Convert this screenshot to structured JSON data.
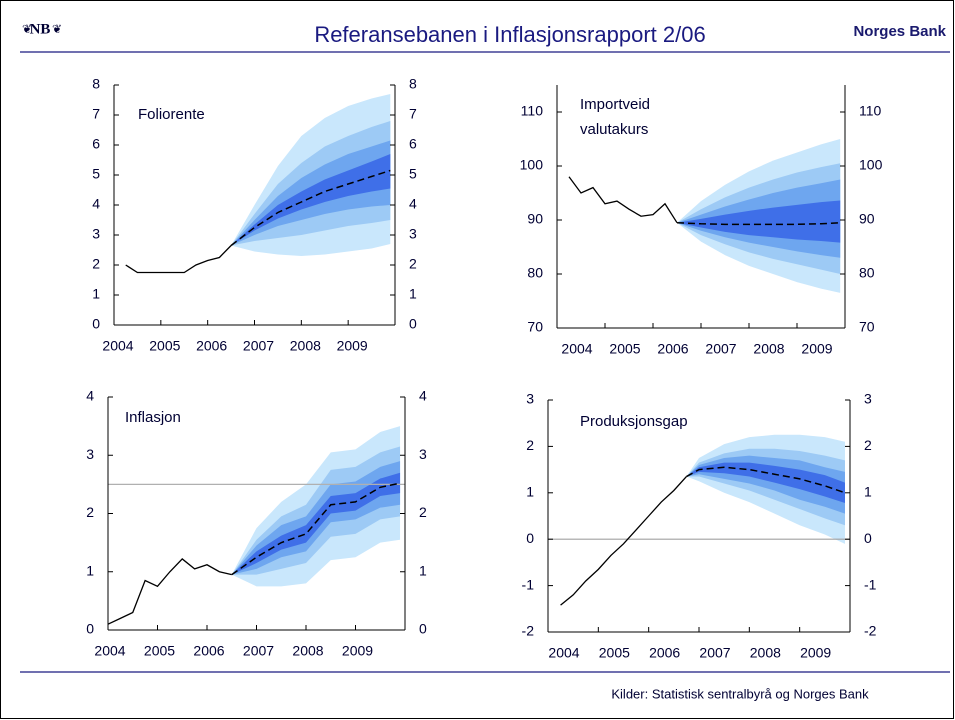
{
  "header": {
    "logo": "NB",
    "title": "Referansebanen i Inflasjonsrapport 2/06",
    "brand": "Norges Bank"
  },
  "footer": {
    "source": "Kilder: Statistisk sentralbyrå og Norges Bank"
  },
  "chart_data": [
    {
      "type": "fan",
      "title": [
        "Foliorente"
      ],
      "xlim": [
        2004,
        2010
      ],
      "xticks": [
        2004,
        2005,
        2006,
        2007,
        2008,
        2009
      ],
      "ylim": [
        0,
        8
      ],
      "yticks": [
        0,
        1,
        2,
        3,
        4,
        5,
        6,
        7,
        8
      ],
      "history": {
        "color": "#000000",
        "x": [
          2004.25,
          2004.5,
          2004.75,
          2005,
          2005.25,
          2005.5,
          2005.75,
          2006,
          2006.25,
          2006.5
        ],
        "values": [
          2.0,
          1.75,
          1.75,
          1.75,
          1.75,
          1.75,
          2.0,
          2.15,
          2.25,
          2.65
        ]
      },
      "fan_x": [
        2006.5,
        2007,
        2007.5,
        2008,
        2008.5,
        2009,
        2009.5,
        2009.9
      ],
      "median": {
        "color": "#000000",
        "values": [
          2.65,
          3.25,
          3.75,
          4.1,
          4.45,
          4.7,
          4.95,
          5.15
        ]
      },
      "bands": [
        {
          "color": "#c9e7fc",
          "lower": [
            2.65,
            2.45,
            2.35,
            2.3,
            2.35,
            2.45,
            2.55,
            2.7
          ],
          "upper": [
            2.65,
            4.0,
            5.3,
            6.3,
            6.9,
            7.3,
            7.55,
            7.7
          ]
        },
        {
          "color": "#9dcaf5",
          "lower": [
            2.65,
            2.8,
            2.9,
            3.0,
            3.15,
            3.3,
            3.4,
            3.5
          ],
          "upper": [
            2.65,
            3.7,
            4.7,
            5.4,
            5.95,
            6.3,
            6.6,
            6.8
          ]
        },
        {
          "color": "#6ea6ef",
          "lower": [
            2.65,
            3.0,
            3.3,
            3.5,
            3.7,
            3.85,
            3.95,
            4.0
          ],
          "upper": [
            2.65,
            3.5,
            4.3,
            4.9,
            5.35,
            5.7,
            5.95,
            6.15
          ]
        },
        {
          "color": "#3f6fe8",
          "lower": [
            2.65,
            3.15,
            3.55,
            3.85,
            4.1,
            4.3,
            4.45,
            4.55
          ],
          "upper": [
            2.65,
            3.35,
            4.0,
            4.45,
            4.85,
            5.15,
            5.45,
            5.7
          ]
        }
      ]
    },
    {
      "type": "fan",
      "title": [
        "Importveid",
        "valutakurs"
      ],
      "xlim": [
        2004,
        2010
      ],
      "xticks": [
        2004,
        2005,
        2006,
        2007,
        2008,
        2009
      ],
      "ylim": [
        70,
        115
      ],
      "yticks": [
        70,
        80,
        90,
        100,
        110
      ],
      "history": {
        "color": "#000000",
        "x": [
          2004.25,
          2004.5,
          2004.75,
          2005,
          2005.25,
          2005.5,
          2005.75,
          2006,
          2006.25,
          2006.5
        ],
        "values": [
          98,
          95,
          96,
          93,
          93.5,
          92,
          90.7,
          91,
          93,
          89.5
        ]
      },
      "fan_x": [
        2006.5,
        2007,
        2007.5,
        2008,
        2008.5,
        2009,
        2009.5,
        2009.9
      ],
      "median": {
        "color": "#000000",
        "values": [
          89.5,
          89.3,
          89.2,
          89.2,
          89.2,
          89.2,
          89.3,
          89.5
        ]
      },
      "bands": [
        {
          "color": "#c9e7fc",
          "lower": [
            89.5,
            86,
            83.5,
            81.5,
            80,
            78.5,
            77.3,
            76.5
          ],
          "upper": [
            89.5,
            93.5,
            96.5,
            99,
            101,
            102.5,
            104,
            105
          ]
        },
        {
          "color": "#9dcaf5",
          "lower": [
            89.5,
            87.2,
            85.5,
            84,
            82.8,
            81.8,
            80.8,
            80
          ],
          "upper": [
            89.5,
            92,
            94.2,
            96,
            97.5,
            98.8,
            99.8,
            100.5
          ]
        },
        {
          "color": "#6ea6ef",
          "lower": [
            89.5,
            88,
            86.8,
            85.8,
            85,
            84.2,
            83.5,
            83
          ],
          "upper": [
            89.5,
            91,
            92.5,
            93.8,
            95,
            96,
            96.8,
            97.5
          ]
        },
        {
          "color": "#3f6fe8",
          "lower": [
            89.5,
            88.6,
            87.8,
            87.2,
            86.8,
            86.4,
            86.1,
            85.8
          ],
          "upper": [
            89.5,
            90.2,
            91,
            91.7,
            92.3,
            92.8,
            93.3,
            93.6
          ]
        }
      ]
    },
    {
      "type": "fan",
      "title": [
        "Inflasjon"
      ],
      "xlim": [
        2004,
        2010
      ],
      "xticks": [
        2004,
        2005,
        2006,
        2007,
        2008,
        2009
      ],
      "ylim": [
        0,
        4
      ],
      "yticks": [
        0,
        1,
        2,
        3,
        4
      ],
      "hline": 2.5,
      "hline_color": "#b0b0b0",
      "history": {
        "color": "#000000",
        "x": [
          2004.0,
          2004.25,
          2004.5,
          2004.75,
          2005,
          2005.25,
          2005.5,
          2005.75,
          2006,
          2006.25,
          2006.5
        ],
        "values": [
          0.1,
          0.2,
          0.3,
          0.85,
          0.75,
          1.0,
          1.22,
          1.05,
          1.12,
          1.0,
          0.95
        ]
      },
      "fan_x": [
        2006.5,
        2007,
        2007.5,
        2008,
        2008.5,
        2009,
        2009.5,
        2009.9
      ],
      "median": {
        "color": "#000000",
        "values": [
          0.95,
          1.25,
          1.5,
          1.65,
          2.15,
          2.2,
          2.45,
          2.52
        ]
      },
      "bands": [
        {
          "color": "#c9e7fc",
          "lower": [
            0.95,
            0.75,
            0.75,
            0.8,
            1.2,
            1.25,
            1.5,
            1.55
          ],
          "upper": [
            0.95,
            1.75,
            2.2,
            2.5,
            3.05,
            3.1,
            3.4,
            3.5
          ]
        },
        {
          "color": "#9dcaf5",
          "lower": [
            0.95,
            0.95,
            1.05,
            1.15,
            1.6,
            1.65,
            1.9,
            1.95
          ],
          "upper": [
            0.95,
            1.55,
            1.95,
            2.15,
            2.75,
            2.8,
            3.05,
            3.15
          ]
        },
        {
          "color": "#6ea6ef",
          "lower": [
            0.95,
            1.05,
            1.25,
            1.35,
            1.85,
            1.9,
            2.1,
            2.15
          ],
          "upper": [
            0.95,
            1.45,
            1.8,
            1.95,
            2.5,
            2.55,
            2.8,
            2.9
          ]
        },
        {
          "color": "#3f6fe8",
          "lower": [
            0.95,
            1.15,
            1.38,
            1.5,
            2.0,
            2.05,
            2.3,
            2.35
          ],
          "upper": [
            0.95,
            1.35,
            1.62,
            1.8,
            2.3,
            2.35,
            2.6,
            2.7
          ]
        }
      ]
    },
    {
      "type": "fan",
      "title": [
        "Produksjonsgap"
      ],
      "xlim": [
        2004,
        2010
      ],
      "xticks": [
        2004,
        2005,
        2006,
        2007,
        2008,
        2009
      ],
      "ylim": [
        -2,
        3
      ],
      "yticks": [
        -2,
        -1,
        0,
        1,
        2,
        3
      ],
      "hline": 0,
      "hline_color": "#a0a0a0",
      "history": {
        "color": "#000000",
        "x": [
          2004.25,
          2004.5,
          2004.75,
          2005,
          2005.25,
          2005.5,
          2005.75,
          2006,
          2006.25,
          2006.5,
          2006.75
        ],
        "values": [
          -1.42,
          -1.2,
          -0.9,
          -0.65,
          -0.35,
          -0.1,
          0.2,
          0.5,
          0.8,
          1.05,
          1.35
        ]
      },
      "fan_x": [
        2006.75,
        2007,
        2007.5,
        2008,
        2008.5,
        2009,
        2009.5,
        2009.9
      ],
      "median": {
        "color": "#000000",
        "values": [
          1.35,
          1.5,
          1.55,
          1.5,
          1.4,
          1.3,
          1.15,
          1.0
        ]
      },
      "bands": [
        {
          "color": "#c9e7fc",
          "lower": [
            1.35,
            1.25,
            1.0,
            0.8,
            0.55,
            0.3,
            0.1,
            -0.1
          ],
          "upper": [
            1.35,
            1.75,
            2.05,
            2.2,
            2.25,
            2.25,
            2.2,
            2.1
          ]
        },
        {
          "color": "#9dcaf5",
          "lower": [
            1.35,
            1.35,
            1.2,
            1.05,
            0.85,
            0.65,
            0.45,
            0.3
          ],
          "upper": [
            1.35,
            1.65,
            1.85,
            1.95,
            1.95,
            1.9,
            1.8,
            1.7
          ]
        },
        {
          "color": "#6ea6ef",
          "lower": [
            1.35,
            1.4,
            1.3,
            1.2,
            1.05,
            0.85,
            0.7,
            0.55
          ],
          "upper": [
            1.35,
            1.6,
            1.75,
            1.8,
            1.75,
            1.7,
            1.55,
            1.45
          ]
        },
        {
          "color": "#3f6fe8",
          "lower": [
            1.35,
            1.45,
            1.42,
            1.35,
            1.22,
            1.08,
            0.92,
            0.78
          ],
          "upper": [
            1.35,
            1.55,
            1.65,
            1.65,
            1.58,
            1.5,
            1.38,
            1.22
          ]
        }
      ]
    }
  ]
}
